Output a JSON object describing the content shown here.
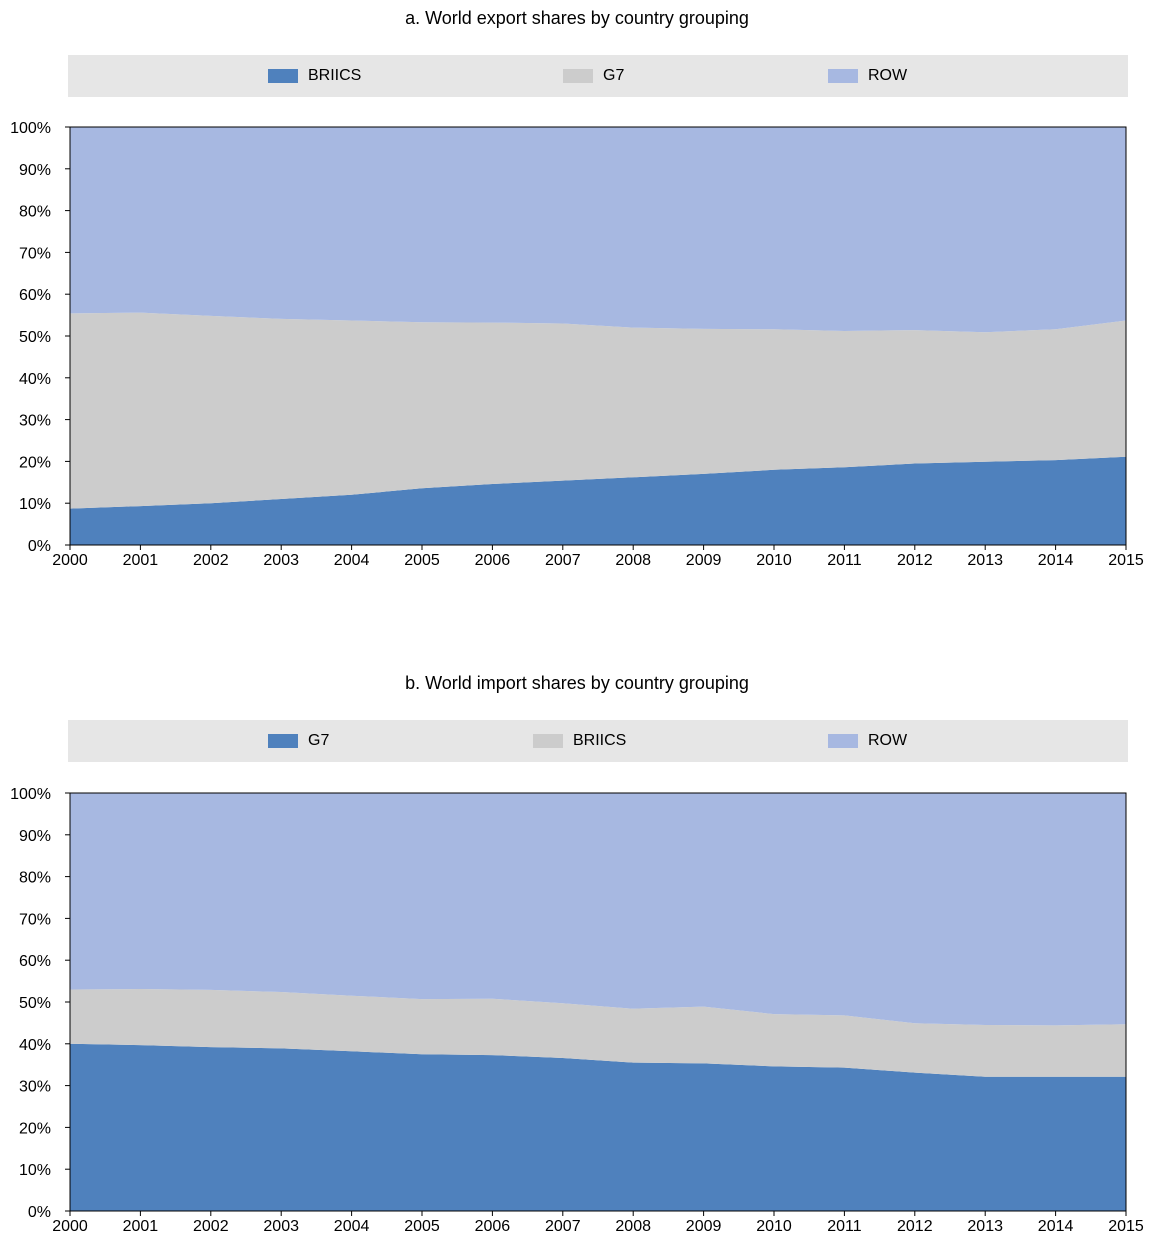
{
  "chart_data": [
    {
      "type": "area",
      "stacked": true,
      "title": "a. World export shares by country grouping",
      "categories": [
        "2000",
        "2001",
        "2002",
        "2003",
        "2004",
        "2005",
        "2006",
        "2007",
        "2008",
        "2009",
        "2010",
        "2011",
        "2012",
        "2013",
        "2014",
        "2015"
      ],
      "series": [
        {
          "name": "BRIICS",
          "color": "#4f81bd",
          "values": [
            8.7,
            9.3,
            10.0,
            11.0,
            12.0,
            13.6,
            14.6,
            15.4,
            16.2,
            17.0,
            18.0,
            18.6,
            19.5,
            19.9,
            20.3,
            21.1
          ]
        },
        {
          "name": "G7",
          "color": "#cccccc",
          "values": [
            46.7,
            46.3,
            44.8,
            43.1,
            41.7,
            39.7,
            38.6,
            37.6,
            35.8,
            34.7,
            33.6,
            32.6,
            31.9,
            31.0,
            31.3,
            32.6
          ]
        },
        {
          "name": "ROW",
          "color": "#a7b8e1",
          "values": [
            44.6,
            44.4,
            45.2,
            45.9,
            46.3,
            46.7,
            46.8,
            47.0,
            48.0,
            48.3,
            48.4,
            48.8,
            48.6,
            49.1,
            48.4,
            46.3
          ]
        }
      ],
      "ylim": [
        0,
        100
      ],
      "y_ticks": [
        "0%",
        "10%",
        "20%",
        "30%",
        "40%",
        "50%",
        "60%",
        "70%",
        "80%",
        "90%",
        "100%"
      ],
      "xlabel": "",
      "ylabel": "",
      "legend_position": "top"
    },
    {
      "type": "area",
      "stacked": true,
      "title": "b. World import shares by country grouping",
      "categories": [
        "2000",
        "2001",
        "2002",
        "2003",
        "2004",
        "2005",
        "2006",
        "2007",
        "2008",
        "2009",
        "2010",
        "2011",
        "2012",
        "2013",
        "2014",
        "2015"
      ],
      "series": [
        {
          "name": "G7",
          "color": "#4f81bd",
          "values": [
            40.0,
            39.7,
            39.2,
            38.9,
            38.2,
            37.5,
            37.3,
            36.6,
            35.5,
            35.3,
            34.6,
            34.3,
            33.1,
            32.1,
            32.1,
            32.1
          ]
        },
        {
          "name": "BRIICS",
          "color": "#cccccc",
          "values": [
            13.0,
            13.4,
            13.7,
            13.5,
            13.3,
            13.2,
            13.5,
            13.1,
            12.9,
            13.6,
            12.5,
            12.5,
            11.8,
            12.4,
            12.3,
            12.6
          ]
        },
        {
          "name": "ROW",
          "color": "#a7b8e1",
          "values": [
            47.0,
            46.9,
            47.1,
            47.6,
            48.5,
            49.3,
            49.2,
            50.3,
            51.6,
            51.1,
            52.9,
            53.2,
            55.1,
            55.5,
            55.6,
            55.3
          ]
        }
      ],
      "ylim": [
        0,
        100
      ],
      "y_ticks": [
        "0%",
        "10%",
        "20%",
        "30%",
        "40%",
        "50%",
        "60%",
        "70%",
        "80%",
        "90%",
        "100%"
      ],
      "xlabel": "",
      "ylabel": "",
      "legend_position": "top"
    }
  ]
}
